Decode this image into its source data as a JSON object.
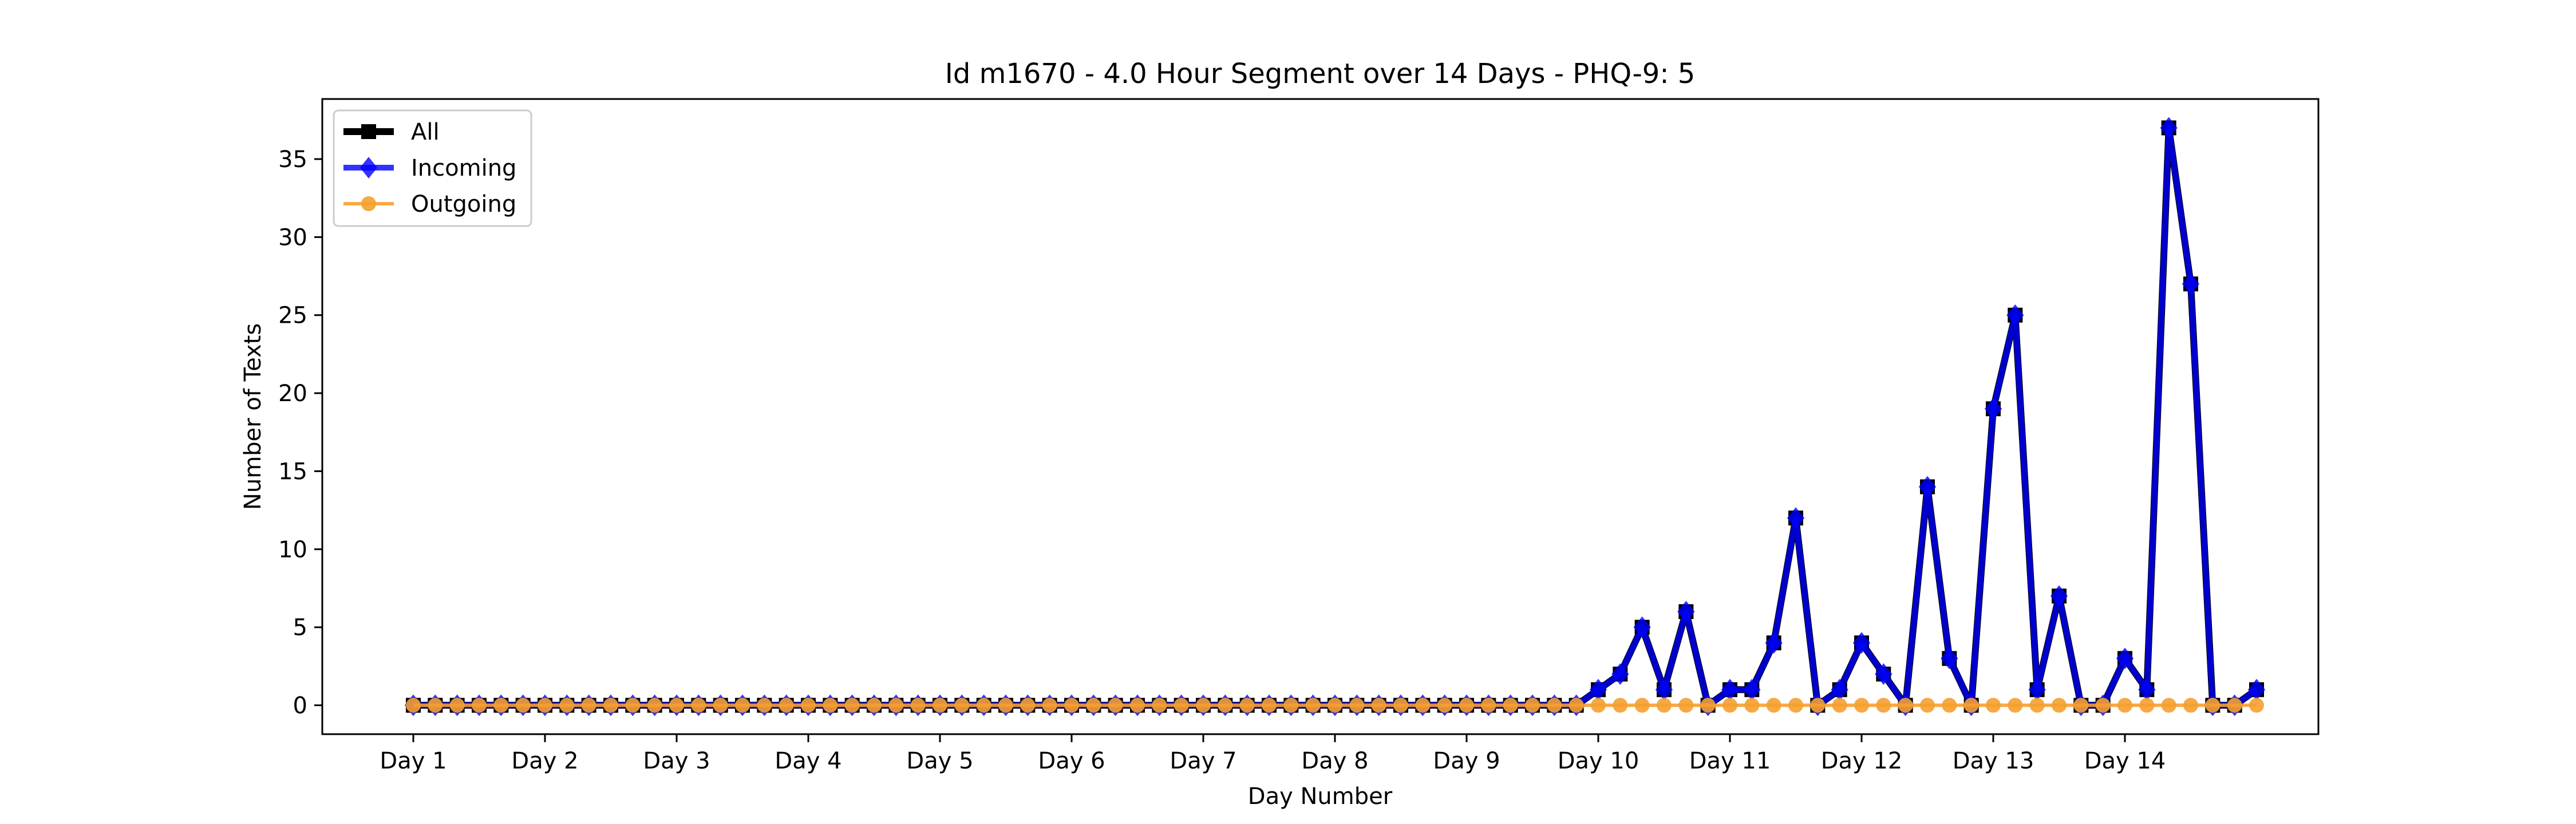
{
  "chart_data": {
    "type": "line",
    "title": "Id m1670 - 4.0 Hour Segment over 14 Days - PHQ-9: 5",
    "xlabel": "Day Number",
    "ylabel": "Number of Texts",
    "x_tick_labels": [
      "Day 1",
      "Day 2",
      "Day 3",
      "Day 4",
      "Day 5",
      "Day 6",
      "Day 7",
      "Day 8",
      "Day 9",
      "Day 10",
      "Day 11",
      "Day 12",
      "Day 13",
      "Day 14"
    ],
    "ylim": [
      -1.85,
      38.85
    ],
    "y_ticks": [
      0,
      5,
      10,
      15,
      20,
      25,
      30,
      35
    ],
    "grid": false,
    "legend_position": "top-left",
    "points_per_day": 6,
    "series": [
      {
        "name": "All",
        "color": "#000000",
        "marker": "square",
        "values": [
          0,
          0,
          0,
          0,
          0,
          0,
          0,
          0,
          0,
          0,
          0,
          0,
          0,
          0,
          0,
          0,
          0,
          0,
          0,
          0,
          0,
          0,
          0,
          0,
          0,
          0,
          0,
          0,
          0,
          0,
          0,
          0,
          0,
          0,
          0,
          0,
          0,
          0,
          0,
          0,
          0,
          0,
          0,
          0,
          0,
          0,
          0,
          0,
          0,
          0,
          0,
          0,
          0,
          0,
          1,
          2,
          5,
          1,
          6,
          0,
          1,
          1,
          4,
          12,
          0,
          1,
          4,
          2,
          0,
          14,
          3,
          0,
          19,
          25,
          1,
          7,
          0,
          0,
          3,
          1,
          37,
          27,
          0,
          0,
          1
        ]
      },
      {
        "name": "Incoming",
        "color": "#0000ff",
        "marker": "diamond",
        "values": [
          0,
          0,
          0,
          0,
          0,
          0,
          0,
          0,
          0,
          0,
          0,
          0,
          0,
          0,
          0,
          0,
          0,
          0,
          0,
          0,
          0,
          0,
          0,
          0,
          0,
          0,
          0,
          0,
          0,
          0,
          0,
          0,
          0,
          0,
          0,
          0,
          0,
          0,
          0,
          0,
          0,
          0,
          0,
          0,
          0,
          0,
          0,
          0,
          0,
          0,
          0,
          0,
          0,
          0,
          1,
          2,
          5,
          1,
          6,
          0,
          1,
          1,
          4,
          12,
          0,
          1,
          4,
          2,
          0,
          14,
          3,
          0,
          19,
          25,
          1,
          7,
          0,
          0,
          3,
          1,
          37,
          27,
          0,
          0,
          1
        ]
      },
      {
        "name": "Outgoing",
        "color": "#f5a030",
        "marker": "circle",
        "values": [
          0,
          0,
          0,
          0,
          0,
          0,
          0,
          0,
          0,
          0,
          0,
          0,
          0,
          0,
          0,
          0,
          0,
          0,
          0,
          0,
          0,
          0,
          0,
          0,
          0,
          0,
          0,
          0,
          0,
          0,
          0,
          0,
          0,
          0,
          0,
          0,
          0,
          0,
          0,
          0,
          0,
          0,
          0,
          0,
          0,
          0,
          0,
          0,
          0,
          0,
          0,
          0,
          0,
          0,
          0,
          0,
          0,
          0,
          0,
          0,
          0,
          0,
          0,
          0,
          0,
          0,
          0,
          0,
          0,
          0,
          0,
          0,
          0,
          0,
          0,
          0,
          0,
          0,
          0,
          0,
          0,
          0,
          0,
          0,
          0
        ]
      }
    ]
  }
}
